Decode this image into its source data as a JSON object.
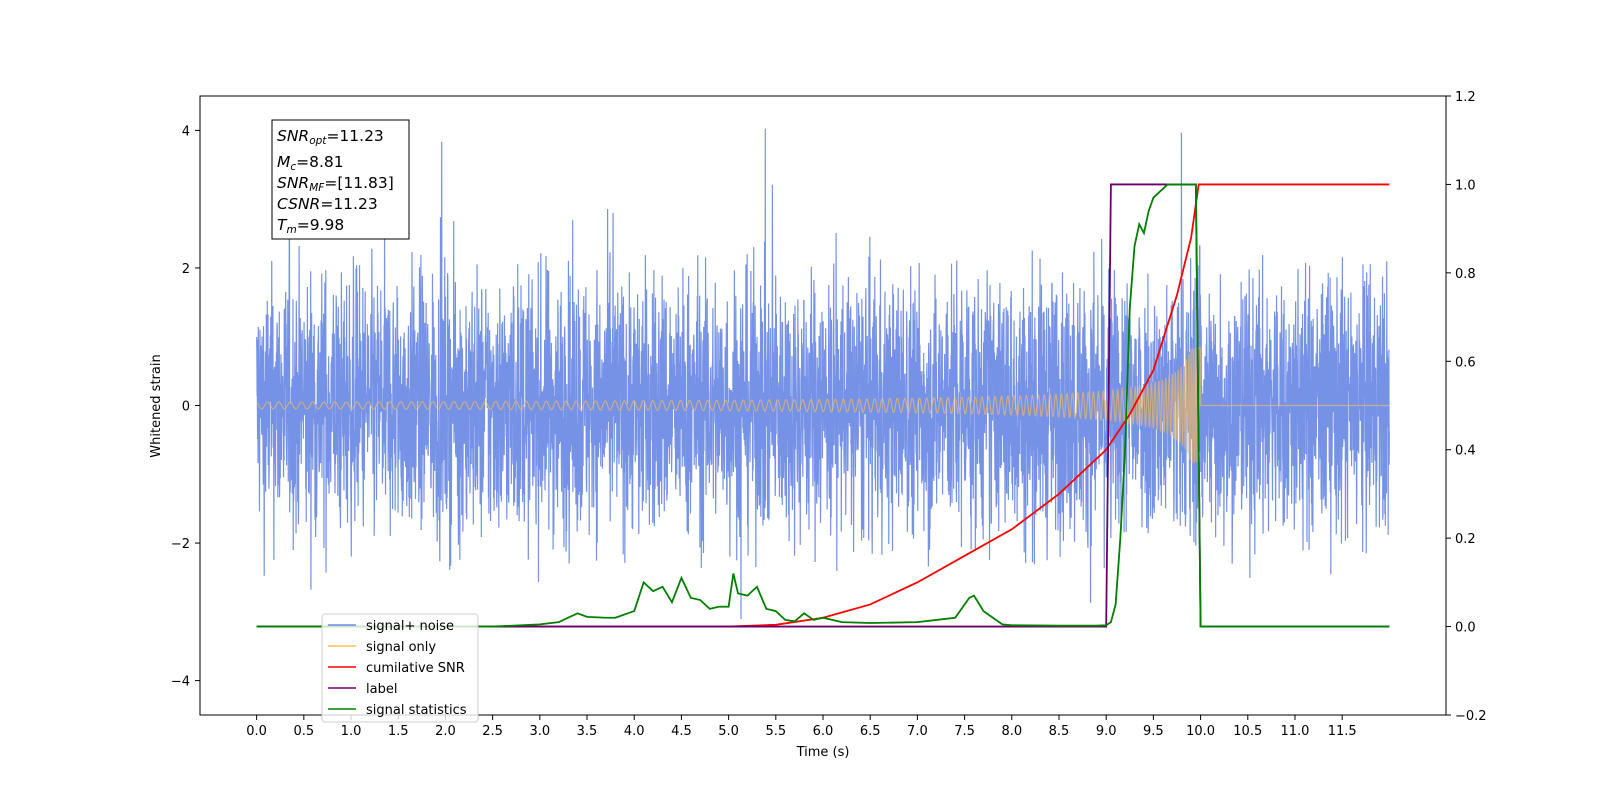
{
  "chart_data": {
    "type": "line",
    "xlabel": "Time (s)",
    "ylabel": "Whitened strain",
    "xlim": [
      -0.6,
      12.6
    ],
    "ylim": [
      -4.5,
      4.5
    ],
    "y2lim": [
      -0.2,
      1.2
    ],
    "x_ticks": [
      "0.0",
      "0.5",
      "1.0",
      "1.5",
      "2.0",
      "2.5",
      "3.0",
      "3.5",
      "4.0",
      "4.5",
      "5.0",
      "5.5",
      "6.0",
      "6.5",
      "7.0",
      "7.5",
      "8.0",
      "8.5",
      "9.0",
      "9.5",
      "10.0",
      "10.5",
      "11.0",
      "11.5"
    ],
    "y_ticks": [
      "4",
      "2",
      "0",
      "−2",
      "−4"
    ],
    "y2_ticks": [
      "1.2",
      "1.0",
      "0.8",
      "0.6",
      "0.4",
      "0.2",
      "0.0",
      "−0.2"
    ],
    "grid": false,
    "legend_position": "lower-left",
    "stats_box": {
      "snr_opt": {
        "base": "SNR",
        "sub": "opt",
        "value": "=11.23"
      },
      "mc": {
        "base": "M",
        "sub": "c",
        "value": "=8.81"
      },
      "snr_mf": {
        "base": "SNR",
        "sub": "MF",
        "value": "=[11.83]"
      },
      "csnr": {
        "base": "CSNR",
        "sub": "",
        "value": "=11.23"
      },
      "tm": {
        "base": "T",
        "sub": "m",
        "value": "=9.98"
      }
    },
    "series": [
      {
        "name": "signal+ noise",
        "color": "#6e8ce6",
        "axis": "left",
        "description_values": {
          "x_range": [
            0.0,
            12.0
          ],
          "amplitude_typical": 2.2,
          "amplitude_peak": 4.1
        }
      },
      {
        "name": "signal only",
        "color": "#ffbe50",
        "axis": "left",
        "chirp": {
          "x_start": 0.0,
          "x_merger": 9.98,
          "x_end": 12.0,
          "peak_amplitude": 0.85
        }
      },
      {
        "name": "cumilative SNR",
        "color": "#ff0000",
        "axis": "right",
        "x": [
          0.0,
          5.0,
          5.5,
          6.0,
          6.5,
          7.0,
          7.5,
          8.0,
          8.5,
          9.0,
          9.25,
          9.5,
          9.75,
          9.9,
          9.98,
          12.0
        ],
        "y": [
          0.0,
          0.0,
          0.004,
          0.02,
          0.05,
          0.1,
          0.16,
          0.22,
          0.3,
          0.4,
          0.48,
          0.58,
          0.75,
          0.88,
          1.0,
          1.0
        ]
      },
      {
        "name": "label",
        "color": "#6a006a",
        "axis": "right",
        "x": [
          0.0,
          9.0,
          9.05,
          9.95,
          10.0,
          12.0
        ],
        "y": [
          0.0,
          0.0,
          1.0,
          1.0,
          0.0,
          0.0
        ]
      },
      {
        "name": "signal statistics",
        "color": "#008000",
        "axis": "right",
        "x": [
          0.0,
          2.5,
          3.0,
          3.2,
          3.3,
          3.4,
          3.5,
          3.7,
          3.8,
          4.0,
          4.1,
          4.2,
          4.3,
          4.4,
          4.5,
          4.6,
          4.7,
          4.8,
          4.9,
          5.0,
          5.05,
          5.1,
          5.2,
          5.3,
          5.4,
          5.5,
          5.6,
          5.7,
          5.8,
          5.9,
          6.0,
          6.2,
          6.5,
          7.0,
          7.2,
          7.4,
          7.5,
          7.55,
          7.6,
          7.7,
          7.8,
          7.9,
          8.0,
          8.5,
          8.9,
          9.0,
          9.05,
          9.1,
          9.15,
          9.2,
          9.25,
          9.3,
          9.35,
          9.4,
          9.45,
          9.5,
          9.6,
          9.65,
          9.7,
          9.8,
          9.85,
          9.95,
          10.0,
          12.0
        ],
        "y": [
          0.0,
          0.0,
          0.005,
          0.01,
          0.02,
          0.03,
          0.022,
          0.02,
          0.02,
          0.035,
          0.1,
          0.08,
          0.09,
          0.055,
          0.11,
          0.065,
          0.06,
          0.04,
          0.045,
          0.045,
          0.12,
          0.075,
          0.07,
          0.09,
          0.04,
          0.035,
          0.015,
          0.012,
          0.03,
          0.015,
          0.02,
          0.01,
          0.008,
          0.01,
          0.015,
          0.02,
          0.05,
          0.065,
          0.07,
          0.035,
          0.02,
          0.005,
          0.003,
          0.002,
          0.002,
          0.003,
          0.01,
          0.05,
          0.2,
          0.4,
          0.72,
          0.86,
          0.91,
          0.89,
          0.94,
          0.97,
          0.99,
          1.0,
          1.0,
          1.0,
          1.0,
          1.0,
          0.0,
          0.0
        ]
      }
    ]
  }
}
